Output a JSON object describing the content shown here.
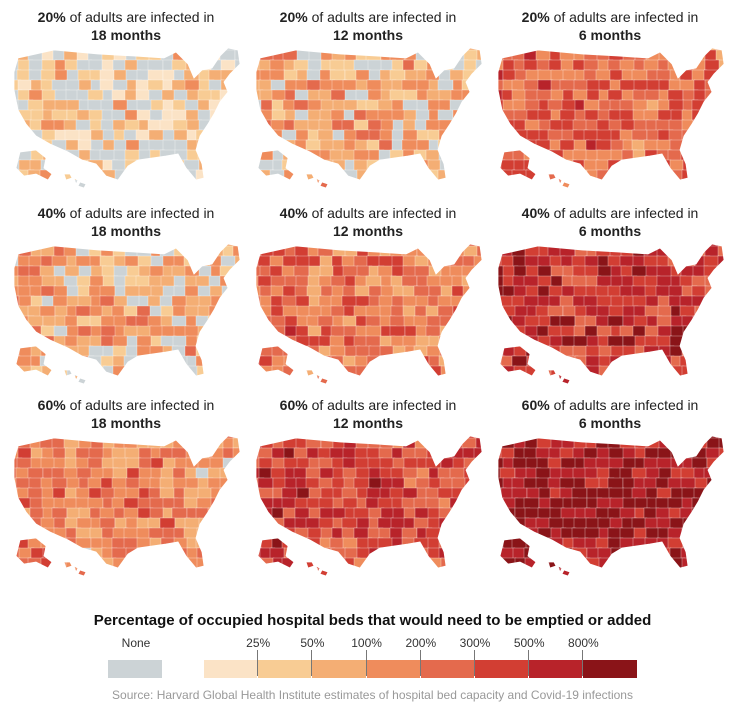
{
  "chart_data": {
    "type": "choropleth-map-grid",
    "title": "Percentage of occupied hospital beds that would need to be emptied or added",
    "source": "Source: Harvard Global Health Institute estimates of hospital bed capacity and Covid-19 infections",
    "caption_suffix": "of adults are infected in",
    "panels": [
      {
        "pct": "20%",
        "period": "18 months",
        "intensity": 0.15
      },
      {
        "pct": "20%",
        "period": "12 months",
        "intensity": 0.3
      },
      {
        "pct": "20%",
        "period": "6 months",
        "intensity": 0.55
      },
      {
        "pct": "40%",
        "period": "18 months",
        "intensity": 0.3
      },
      {
        "pct": "40%",
        "period": "12 months",
        "intensity": 0.5
      },
      {
        "pct": "40%",
        "period": "6 months",
        "intensity": 0.75
      },
      {
        "pct": "60%",
        "period": "18 months",
        "intensity": 0.45
      },
      {
        "pct": "60%",
        "period": "12 months",
        "intensity": 0.68
      },
      {
        "pct": "60%",
        "period": "6 months",
        "intensity": 0.9
      }
    ],
    "legend": {
      "none_label": "None",
      "none_color": "#ccd3d6",
      "ticks": [
        "25%",
        "50%",
        "100%",
        "200%",
        "300%",
        "500%",
        "800%"
      ],
      "colors": [
        "#fbe3c6",
        "#f8cc94",
        "#f4ae74",
        "#ef8c5c",
        "#e46a4d",
        "#d23e33",
        "#b8232a",
        "#8a1418"
      ]
    }
  }
}
